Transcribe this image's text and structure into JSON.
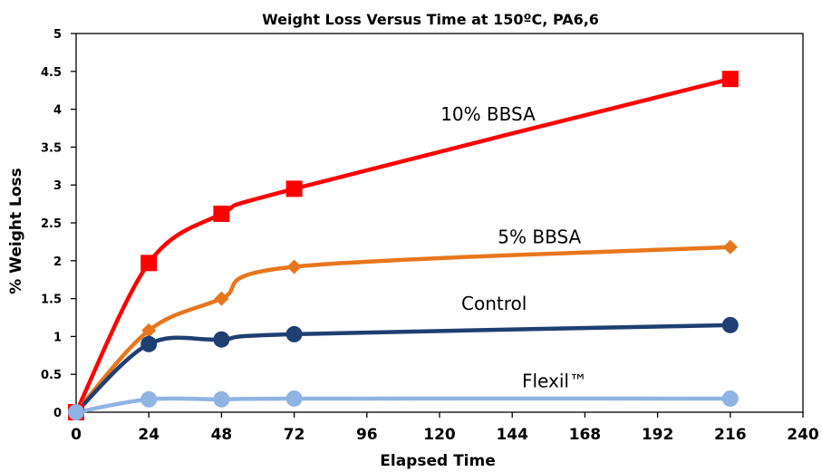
{
  "chart_data": {
    "type": "line",
    "title": "Weight Loss Versus Time at 150ºC, PA6,6",
    "xlabel": "Elapsed Time",
    "ylabel": "% Weight Loss",
    "xlim": [
      0,
      240
    ],
    "ylim": [
      0,
      5
    ],
    "x_ticks": [
      0,
      24,
      48,
      72,
      96,
      120,
      144,
      168,
      192,
      216,
      240
    ],
    "y_ticks": [
      0,
      0.5,
      1,
      1.5,
      2,
      2.5,
      3,
      3.5,
      4,
      4.5,
      5
    ],
    "x_tick_labels": [
      "0",
      "24",
      "48",
      "72",
      "96",
      "120",
      "144",
      "168",
      "192",
      "216",
      "240"
    ],
    "y_tick_labels": [
      "0",
      "0.5",
      "1",
      "1.5",
      "2",
      "2.5",
      "3",
      "3.5",
      "4",
      "4.5",
      "5"
    ],
    "grid": false,
    "legend": "none",
    "series": [
      {
        "name": "10% BBSA",
        "color": "#ff0000",
        "marker": "square",
        "x": [
          0,
          24,
          48,
          72,
          216
        ],
        "y": [
          0,
          1.97,
          2.62,
          2.95,
          4.4
        ]
      },
      {
        "name": "5% BBSA",
        "color": "#e8761c",
        "marker": "diamond",
        "x": [
          0,
          24,
          48,
          72,
          216
        ],
        "y": [
          0,
          1.08,
          1.5,
          1.92,
          2.18
        ]
      },
      {
        "name": "Control",
        "color": "#1f3f73",
        "marker": "circle",
        "x": [
          0,
          24,
          48,
          72,
          216
        ],
        "y": [
          0,
          0.9,
          0.96,
          1.03,
          1.15
        ]
      },
      {
        "name": "Flexil™",
        "color": "#8fb3e3",
        "marker": "circle",
        "x": [
          0,
          24,
          48,
          72,
          216
        ],
        "y": [
          0,
          0.17,
          0.17,
          0.18,
          0.18
        ]
      }
    ],
    "annotations": [
      {
        "text": "10% BBSA",
        "x": 136,
        "y": 3.85
      },
      {
        "text": "5% BBSA",
        "x": 153,
        "y": 2.23
      },
      {
        "text": "Control",
        "x": 138,
        "y": 1.35
      },
      {
        "text": "Flexil™",
        "x": 158,
        "y": 0.33
      }
    ]
  }
}
